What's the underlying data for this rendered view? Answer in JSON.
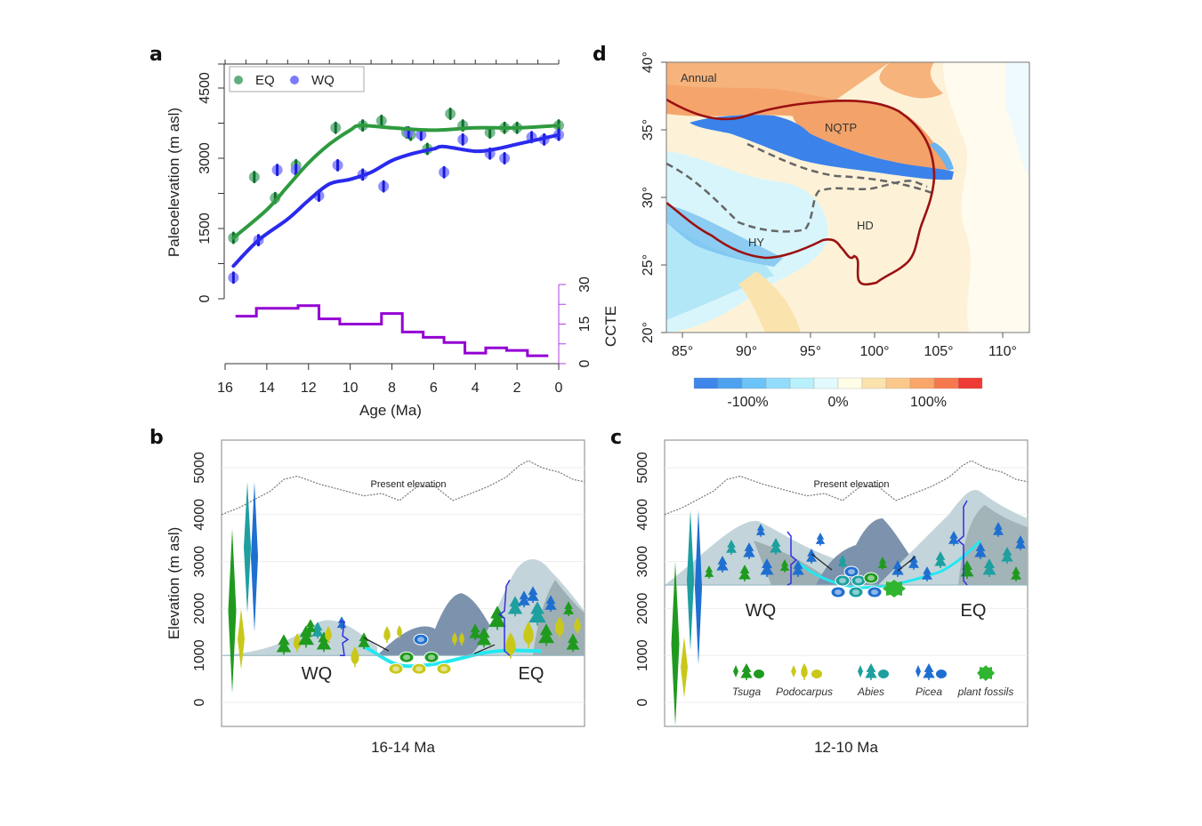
{
  "panels": {
    "a": {
      "label": "a"
    },
    "b": {
      "label": "b"
    },
    "c": {
      "label": "c"
    },
    "d": {
      "label": "d"
    }
  },
  "chart_data": [
    {
      "panel": "a",
      "type": "scatter",
      "title": "",
      "xlabel": "Age (Ma)",
      "ylabel": "Paleoelevation (m asl)",
      "y2label": "CCTE",
      "xlim": [
        16,
        0
      ],
      "ylim": [
        0,
        4500
      ],
      "y2lim": [
        0,
        30
      ],
      "xticks": [
        "16",
        "14",
        "12",
        "10",
        "8",
        "6",
        "4",
        "2",
        "0"
      ],
      "yticks": [
        "0",
        "1500",
        "3000",
        "4500"
      ],
      "y2ticks": [
        "0",
        "15",
        "30"
      ],
      "legend": {
        "position": "top-left",
        "entries": [
          {
            "name": "EQ",
            "color": "#5fae7f"
          },
          {
            "name": "WQ",
            "color": "#7b7bff"
          }
        ]
      },
      "series": [
        {
          "name": "EQ",
          "color": "#2e9a3e",
          "points": [
            [
              15.6,
              1300
            ],
            [
              14.6,
              2600
            ],
            [
              13.6,
              2150
            ],
            [
              12.6,
              2850
            ],
            [
              10.7,
              3650
            ],
            [
              9.4,
              3700
            ],
            [
              8.5,
              3800
            ],
            [
              7.3,
              3550
            ],
            [
              7.1,
              3500
            ],
            [
              6.3,
              3200
            ],
            [
              5.2,
              3950
            ],
            [
              4.6,
              3700
            ],
            [
              3.3,
              3550
            ],
            [
              2.6,
              3650
            ],
            [
              2.0,
              3650
            ],
            [
              0.0,
              3700
            ]
          ],
          "smooth": [
            [
              15.6,
              1300
            ],
            [
              14,
              1900
            ],
            [
              13,
              2400
            ],
            [
              12,
              2900
            ],
            [
              11,
              3300
            ],
            [
              10,
              3600
            ],
            [
              9.5,
              3700
            ],
            [
              8,
              3650
            ],
            [
              6,
              3600
            ],
            [
              4,
              3650
            ],
            [
              2,
              3650
            ],
            [
              0,
              3700
            ]
          ]
        },
        {
          "name": "WQ",
          "color": "#2a2aee",
          "points": [
            [
              15.6,
              450
            ],
            [
              14.4,
              1250
            ],
            [
              13.5,
              2750
            ],
            [
              12.6,
              2750
            ],
            [
              11.5,
              2200
            ],
            [
              10.6,
              2850
            ],
            [
              9.4,
              2650
            ],
            [
              8.4,
              2400
            ],
            [
              7.2,
              3550
            ],
            [
              6.6,
              3500
            ],
            [
              5.5,
              2700
            ],
            [
              4.6,
              3400
            ],
            [
              3.3,
              3100
            ],
            [
              2.6,
              3000
            ],
            [
              1.3,
              3450
            ],
            [
              0.7,
              3400
            ],
            [
              0.0,
              3500
            ]
          ],
          "smooth": [
            [
              15.6,
              700
            ],
            [
              14.4,
              1250
            ],
            [
              13,
              1700
            ],
            [
              12,
              2100
            ],
            [
              11,
              2450
            ],
            [
              10,
              2550
            ],
            [
              9,
              2700
            ],
            [
              8,
              2950
            ],
            [
              7,
              3100
            ],
            [
              6,
              3200
            ],
            [
              5.5,
              3250
            ],
            [
              4,
              3150
            ],
            [
              3,
              3200
            ],
            [
              2,
              3300
            ],
            [
              1,
              3400
            ],
            [
              0,
              3500
            ]
          ]
        },
        {
          "name": "CCTE",
          "axis": "y2",
          "type": "step",
          "color": "#9400d3",
          "steps": [
            [
              15.5,
              14.5,
              18
            ],
            [
              14.5,
              12.5,
              21
            ],
            [
              12.5,
              11.5,
              22
            ],
            [
              11.5,
              10.5,
              17
            ],
            [
              10.5,
              8.5,
              15
            ],
            [
              8.5,
              7.5,
              19
            ],
            [
              7.5,
              6.5,
              12
            ],
            [
              6.5,
              5.5,
              10
            ],
            [
              5.5,
              4.5,
              8
            ],
            [
              4.5,
              3.5,
              4
            ],
            [
              3.5,
              2.5,
              6
            ],
            [
              2.5,
              1.5,
              5
            ],
            [
              1.5,
              0.5,
              3
            ]
          ]
        }
      ]
    },
    {
      "panel": "d",
      "type": "heatmap",
      "title": "Annual",
      "xticks": [
        "85°",
        "90°",
        "95°",
        "100°",
        "105°",
        "110°"
      ],
      "yticks": [
        "20°",
        "25°",
        "30°",
        "35°",
        "40°"
      ],
      "xlim": [
        84.4,
        112.2
      ],
      "ylim": [
        20,
        40
      ],
      "regions": [
        "NQTP",
        "HD",
        "HY"
      ],
      "colorbar": {
        "labels": [
          "-100%",
          "0%",
          "100%"
        ],
        "colors": [
          "#3f86ea",
          "#4ea1ef",
          "#6cc3f7",
          "#93dcfb",
          "#b8f0fc",
          "#e2fafd",
          "#fffde6",
          "#fbe3ae",
          "#fbc88b",
          "#f8a66a",
          "#f5794f",
          "#ef3b35"
        ]
      }
    },
    {
      "panel": "b",
      "type": "diagram",
      "ylabel": "Elevation (m asl)",
      "yticks": [
        "0",
        "1000",
        "2000",
        "3000",
        "4000",
        "5000"
      ],
      "ylim": [
        0,
        5000
      ],
      "caption": "16-14 Ma",
      "present_label": "Present elevation",
      "basin_elevation": 1000,
      "regions": [
        "WQ",
        "EQ"
      ]
    },
    {
      "panel": "c",
      "type": "diagram",
      "ylabel": "",
      "yticks": [
        "0",
        "1000",
        "2000",
        "3000",
        "4000",
        "5000"
      ],
      "ylim": [
        0,
        5000
      ],
      "caption": "12-10 Ma",
      "present_label": "Present elevation",
      "basin_elevation": 2500,
      "regions": [
        "WQ",
        "EQ"
      ],
      "legend": [
        "Tsuga",
        "Podocarpus",
        "Abies",
        "Picea",
        "plant fossils"
      ]
    }
  ],
  "colors": {
    "tsuga": "#1f9a1f",
    "podocarpus": "#c9c81a",
    "abies": "#1e9fa0",
    "picea": "#1f6fd0",
    "fossil": "#2fb52f",
    "water": "#22e8f0",
    "mountain_light": "#c3d5da",
    "mountain_dark": "#8e9ea3",
    "mountain_far": "#7d93ad",
    "bracket": "#3232e0",
    "outline": "#9b1111"
  }
}
